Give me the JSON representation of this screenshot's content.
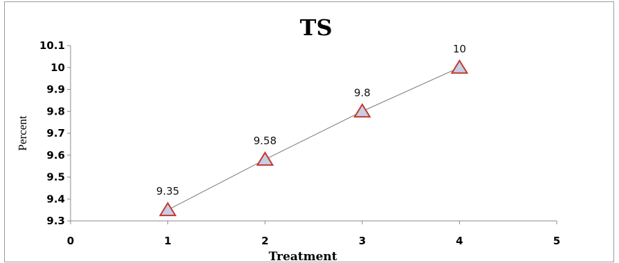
{
  "chart_data": {
    "type": "line",
    "title": "TS",
    "xlabel": "Treatment",
    "ylabel": "Percent",
    "xlim": [
      0,
      5
    ],
    "ylim": [
      9.3,
      10.1
    ],
    "xticks": [
      "0",
      "1",
      "2",
      "3",
      "4",
      "5"
    ],
    "yticks": [
      "9.3",
      "9.4",
      "9.5",
      "9.6",
      "9.7",
      "9.8",
      "9.9",
      "10",
      "10.1"
    ],
    "grid": false,
    "legend": "none",
    "series": [
      {
        "x": [
          1,
          2,
          3,
          4
        ],
        "values": [
          9.35,
          9.58,
          9.8,
          10
        ],
        "labels": [
          "9.35",
          "9.58",
          "9.8",
          "10"
        ]
      }
    ],
    "colors": {
      "line": "#777777",
      "marker_fill": "#c9cde6",
      "marker_stroke": "#c0392b"
    }
  }
}
